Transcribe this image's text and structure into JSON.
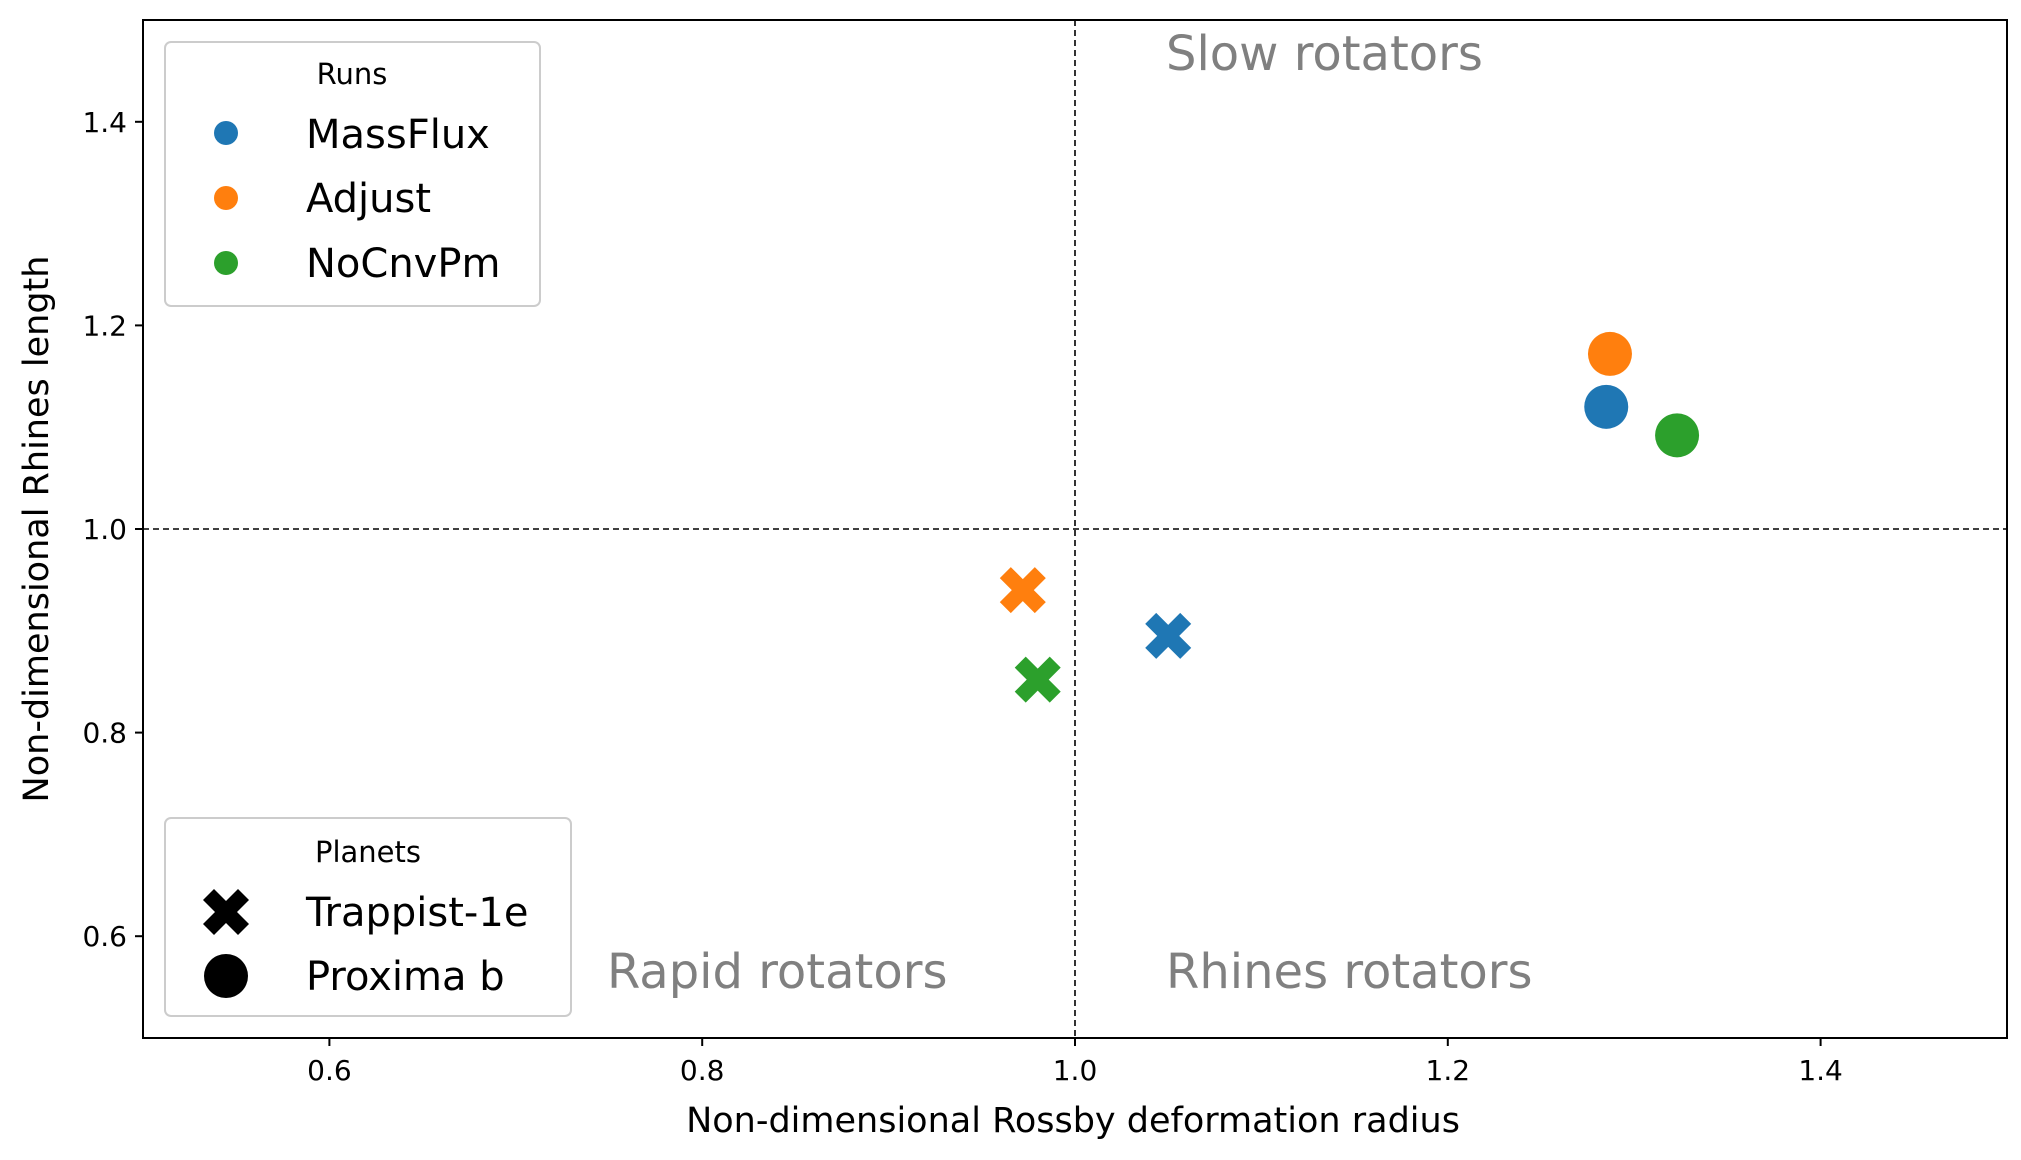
{
  "chart_data": {
    "type": "scatter",
    "xlabel": "Non-dimensional Rossby deformation radius",
    "ylabel": "Non-dimensional Rhines length",
    "xlim": [
      0.5,
      1.5
    ],
    "ylim": [
      0.5,
      1.5
    ],
    "x_ticks": [
      0.6,
      0.8,
      1.0,
      1.2,
      1.4
    ],
    "y_ticks": [
      0.6,
      0.8,
      1.0,
      1.2,
      1.4
    ],
    "x_tick_labels": [
      "0.6",
      "0.8",
      "1.0",
      "1.2",
      "1.4"
    ],
    "y_tick_labels": [
      "0.6",
      "0.8",
      "1.0",
      "1.2",
      "1.4"
    ],
    "reference_lines": {
      "x": 1.0,
      "y": 1.0,
      "style": "dashed"
    },
    "grid": false,
    "region_labels": {
      "slow": "Slow rotators",
      "rapid": "Rapid rotators",
      "rhines": "Rhines rotators"
    },
    "legend_runs": {
      "title": "Runs",
      "placement": "top-left",
      "entries": [
        {
          "name": "MassFlux",
          "color": "#1f77b4"
        },
        {
          "name": "Adjust",
          "color": "#ff7f0e"
        },
        {
          "name": "NoCnvPm",
          "color": "#2ca02c"
        }
      ]
    },
    "legend_planets": {
      "title": "Planets",
      "placement": "bottom-left",
      "entries": [
        {
          "name": "Trappist-1e",
          "marker": "X"
        },
        {
          "name": "Proxima b",
          "marker": "o"
        }
      ]
    },
    "points": [
      {
        "run": "MassFlux",
        "planet": "Trappist-1e",
        "x": 1.05,
        "y": 0.895
      },
      {
        "run": "Adjust",
        "planet": "Trappist-1e",
        "x": 0.972,
        "y": 0.94
      },
      {
        "run": "NoCnvPm",
        "planet": "Trappist-1e",
        "x": 0.98,
        "y": 0.852
      },
      {
        "run": "MassFlux",
        "planet": "Proxima b",
        "x": 1.285,
        "y": 1.12
      },
      {
        "run": "Adjust",
        "planet": "Proxima b",
        "x": 1.287,
        "y": 1.172
      },
      {
        "run": "NoCnvPm",
        "planet": "Proxima b",
        "x": 1.323,
        "y": 1.092
      }
    ]
  }
}
